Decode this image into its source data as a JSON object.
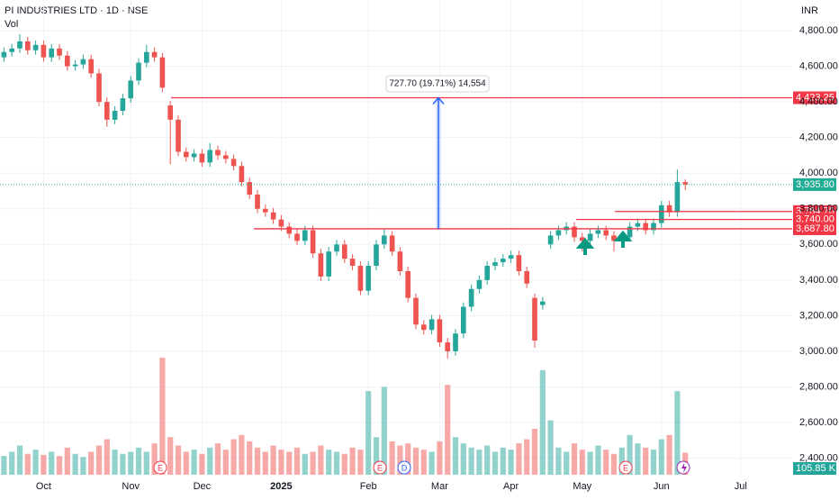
{
  "header": {
    "title": "PI INDUSTRIES LTD · 1D · NSE",
    "volume_label": "Vol",
    "currency": "INR"
  },
  "chart_data": {
    "type": "candlestick",
    "categories": [
      null,
      null,
      null,
      null,
      null,
      "Oct",
      null,
      null,
      null,
      null,
      null,
      null,
      null,
      null,
      null,
      null,
      "Nov",
      null,
      null,
      null,
      null,
      null,
      null,
      null,
      null,
      "Dec",
      null,
      null,
      null,
      null,
      null,
      null,
      null,
      null,
      null,
      "2025",
      null,
      null,
      null,
      null,
      null,
      null,
      null,
      null,
      null,
      null,
      "Feb",
      null,
      null,
      null,
      null,
      null,
      null,
      null,
      null,
      "Mar",
      null,
      null,
      null,
      null,
      null,
      null,
      null,
      null,
      "Apr",
      null,
      null,
      null,
      null,
      null,
      null,
      null,
      null,
      "May",
      null,
      null,
      null,
      null,
      null,
      null,
      null,
      null,
      null,
      "Jun",
      null,
      null,
      null,
      null,
      null,
      null,
      null,
      null,
      null,
      "Jul",
      null,
      null,
      null,
      null,
      null,
      null
    ],
    "open": [
      4650,
      4680,
      4700,
      4740,
      4690,
      4720,
      4650,
      4700,
      4660,
      4600,
      4610,
      4640,
      4560,
      4400,
      4300,
      4350,
      4420,
      4520,
      4620,
      4680,
      4650,
      4380,
      4300,
      4120,
      4090,
      4110,
      4060,
      4130,
      4100,
      4080,
      4040,
      3950,
      3880,
      3800,
      3780,
      3740,
      3700,
      3660,
      3620,
      3680,
      3550,
      3420,
      3560,
      3600,
      3520,
      3480,
      3340,
      3480,
      3600,
      3650,
      3560,
      3450,
      3300,
      3150,
      3120,
      3180,
      3050,
      3000,
      3100,
      3250,
      3350,
      3400,
      3480,
      3500,
      3520,
      3540,
      3450,
      3300,
      3260,
      3600,
      3650,
      3680,
      3700,
      3640,
      3620,
      3660,
      3680,
      3650,
      3620,
      3640,
      3700,
      3720,
      3680,
      3720,
      3820,
      3780,
      3950,
      null,
      null,
      null,
      null,
      null,
      null,
      null,
      null,
      null,
      null,
      null,
      null,
      null
    ],
    "high": [
      4705,
      4725,
      4780,
      4765,
      4745,
      4745,
      4725,
      4725,
      4685,
      4635,
      4665,
      4665,
      4585,
      4425,
      4375,
      4445,
      4545,
      4645,
      4720,
      4705,
      4675,
      4405,
      4325,
      4145,
      4135,
      4135,
      4170,
      4155,
      4125,
      4105,
      4065,
      3975,
      3905,
      3825,
      3805,
      3765,
      3725,
      3685,
      3705,
      3705,
      3575,
      3585,
      3625,
      3625,
      3545,
      3505,
      3505,
      3625,
      3690,
      3675,
      3585,
      3475,
      3325,
      3175,
      3205,
      3205,
      3075,
      3125,
      3275,
      3375,
      3425,
      3505,
      3525,
      3545,
      3565,
      3565,
      3475,
      3325,
      3305,
      3675,
      3705,
      3725,
      3725,
      3665,
      3685,
      3705,
      3705,
      3675,
      3665,
      3725,
      3745,
      3745,
      3745,
      3845,
      3845,
      4020,
      3965,
      null,
      null,
      null,
      null,
      null,
      null,
      null,
      null,
      null,
      null,
      null,
      null,
      null
    ],
    "low": [
      4625,
      4655,
      4675,
      4665,
      4665,
      4625,
      4625,
      4635,
      4575,
      4575,
      4585,
      4535,
      4375,
      4260,
      4275,
      4325,
      4395,
      4495,
      4595,
      4625,
      4455,
      4050,
      4095,
      4065,
      4065,
      4035,
      4035,
      4075,
      4055,
      4015,
      3925,
      3855,
      3775,
      3755,
      3715,
      3675,
      3635,
      3595,
      3595,
      3525,
      3395,
      3395,
      3535,
      3495,
      3455,
      3315,
      3315,
      3455,
      3575,
      3535,
      3425,
      3275,
      3125,
      3095,
      3095,
      3025,
      2960,
      2975,
      3075,
      3225,
      3325,
      3375,
      3455,
      3475,
      3495,
      3425,
      3355,
      3020,
      3235,
      3575,
      3625,
      3655,
      3615,
      3560,
      3595,
      3635,
      3625,
      3560,
      3595,
      3615,
      3675,
      3655,
      3655,
      3695,
      3755,
      3755,
      3905,
      null,
      null,
      null,
      null,
      null,
      null,
      null,
      null,
      null,
      null,
      null,
      null,
      null
    ],
    "close": [
      4680,
      4700,
      4740,
      4690,
      4720,
      4650,
      4700,
      4660,
      4600,
      4610,
      4640,
      4560,
      4400,
      4300,
      4350,
      4420,
      4520,
      4620,
      4680,
      4650,
      4480,
      4300,
      4120,
      4090,
      4110,
      4060,
      4130,
      4100,
      4080,
      4040,
      3950,
      3880,
      3800,
      3780,
      3740,
      3700,
      3660,
      3620,
      3680,
      3550,
      3420,
      3560,
      3600,
      3520,
      3480,
      3340,
      3480,
      3600,
      3650,
      3560,
      3450,
      3300,
      3150,
      3120,
      3180,
      3050,
      3000,
      3100,
      3250,
      3350,
      3400,
      3480,
      3500,
      3520,
      3540,
      3450,
      3380,
      3060,
      3280,
      3650,
      3680,
      3700,
      3640,
      3620,
      3660,
      3680,
      3650,
      3620,
      3640,
      3700,
      3720,
      3680,
      3720,
      3820,
      3780,
      3950,
      3935.8,
      null,
      null,
      null,
      null,
      null,
      null,
      null,
      null,
      null,
      null,
      null,
      null,
      null
    ],
    "volume": [
      90,
      110,
      140,
      100,
      120,
      95,
      110,
      90,
      130,
      100,
      85,
      110,
      140,
      170,
      120,
      100,
      110,
      130,
      110,
      150,
      560,
      180,
      140,
      110,
      120,
      100,
      130,
      150,
      120,
      170,
      190,
      160,
      130,
      110,
      140,
      120,
      110,
      130,
      100,
      110,
      140,
      120,
      110,
      100,
      130,
      120,
      400,
      180,
      420,
      160,
      140,
      150,
      130,
      120,
      110,
      160,
      430,
      180,
      150,
      130,
      120,
      140,
      110,
      130,
      120,
      150,
      170,
      220,
      500,
      260,
      130,
      110,
      150,
      120,
      110,
      140,
      120,
      100,
      130,
      190,
      150,
      130,
      120,
      170,
      190,
      400,
      105.85,
      null,
      null,
      null,
      null,
      null,
      null,
      null,
      null,
      null,
      null,
      null,
      null,
      null
    ],
    "last_volume_label": "105.85 K",
    "up_color": "#26a69a",
    "down_color": "#ef5350",
    "ylim": [
      2307,
      4972
    ],
    "yticks": [
      {
        "value": 2400,
        "label": "2,400.00"
      },
      {
        "value": 2600,
        "label": "2,600.00"
      },
      {
        "value": 2800,
        "label": "2,800.00"
      },
      {
        "value": 3000,
        "label": "3,000.00"
      },
      {
        "value": 3200,
        "label": "3,200.00"
      },
      {
        "value": 3400,
        "label": "3,400.00"
      },
      {
        "value": 3600,
        "label": "3,600.00"
      },
      {
        "value": 3800,
        "label": "3,800.00"
      },
      {
        "value": 4000,
        "label": "4,000.00"
      },
      {
        "value": 4200,
        "label": "4,200.00"
      },
      {
        "value": 4400,
        "label": "4,400.00"
      },
      {
        "value": 4600,
        "label": "4,600.00"
      },
      {
        "value": 4800,
        "label": "4,800.00"
      }
    ],
    "grid": true,
    "levels": [
      {
        "value": 4423.25,
        "label": "4,423.25",
        "color": "#f23645"
      },
      {
        "value": 3784.7,
        "label": "3,784.70",
        "color": "#f23645"
      },
      {
        "value": 3740,
        "label": "3,740.00",
        "color": "#f23645"
      },
      {
        "value": 3687.8,
        "label": "3,687.80",
        "color": "#f23645"
      }
    ],
    "last_price": {
      "value": 3935.8,
      "label": "3,935.80",
      "color": "#22ab94"
    },
    "measure": {
      "text": "727.70 (19.71%) 14,554",
      "color": "#2962ff"
    },
    "event_markers": [
      "E",
      "E",
      "D",
      "E"
    ]
  }
}
